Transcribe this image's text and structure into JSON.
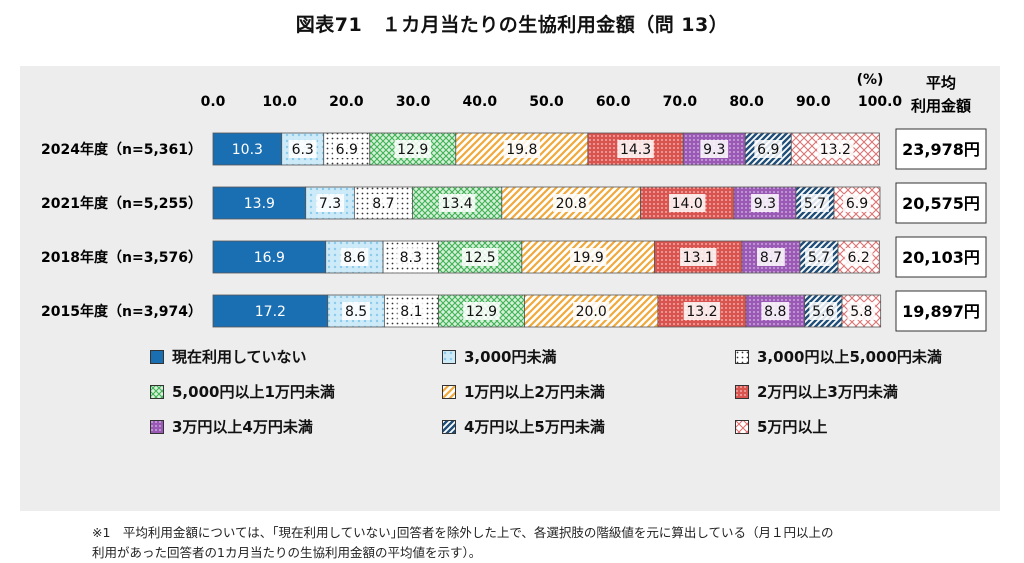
{
  "title": "図表71　１カ月当たりの生協利用金額（問 13）",
  "chart_data": {
    "type": "bar",
    "stacked": true,
    "orientation": "horizontal",
    "unit_label": "(%)",
    "xlim": [
      0,
      100
    ],
    "x_ticks": [
      "0.0",
      "10.0",
      "20.0",
      "30.0",
      "40.0",
      "50.0",
      "60.0",
      "70.0",
      "80.0",
      "90.0",
      "100.0"
    ],
    "categories": [
      "2024年度（n=5,361）",
      "2021年度（n=5,255）",
      "2018年度（n=3,576）",
      "2015年度（n=3,974）"
    ],
    "series": [
      {
        "name": "現在利用していない",
        "color": "#1a6fb3",
        "pattern": "solid",
        "values": [
          10.3,
          13.9,
          16.9,
          17.2
        ]
      },
      {
        "name": "3,000円未満",
        "color": "#a9daf2",
        "pattern": "light",
        "values": [
          6.3,
          7.3,
          8.6,
          8.5
        ]
      },
      {
        "name": "3,000円以上5,000円未満",
        "color": "#444444",
        "pattern": "dots",
        "values": [
          6.9,
          8.7,
          8.3,
          8.1
        ]
      },
      {
        "name": "5,000円以上1万円未満",
        "color": "#3fb255",
        "pattern": "grid",
        "values": [
          12.9,
          13.4,
          12.5,
          12.9
        ]
      },
      {
        "name": "1万円以上2万円未満",
        "color": "#f2a93b",
        "pattern": "diagonal",
        "values": [
          19.8,
          20.8,
          19.9,
          20.0
        ]
      },
      {
        "name": "2万円以上3万円未満",
        "color": "#d9534f",
        "pattern": "dense-dots",
        "values": [
          14.3,
          14.0,
          13.1,
          13.2
        ]
      },
      {
        "name": "3万円以上4万円未満",
        "color": "#9b59b6",
        "pattern": "purple-dots",
        "values": [
          9.3,
          9.3,
          8.7,
          8.8
        ]
      },
      {
        "name": "4万円以上5万円未満",
        "color": "#1f4e79",
        "pattern": "dark-stripes",
        "values": [
          6.9,
          5.7,
          5.7,
          5.6
        ]
      },
      {
        "name": "5万円以上",
        "color": "#e07070",
        "pattern": "crosshatch",
        "values": [
          13.2,
          6.9,
          6.2,
          5.8
        ]
      }
    ],
    "average": {
      "header_line1": "平均",
      "header_line2": "利用金額",
      "values": [
        "23,978円",
        "20,575円",
        "20,103円",
        "19,897円"
      ]
    }
  },
  "footnote": {
    "line1": "※1　平均利用金額については、｢現在利用していない｣回答者を除外した上で、各選択肢の階級値を元に算出している（月１円以上の",
    "line2": "利用があった回答者の1カ月当たりの生協利用金額の平均値を示す）。"
  }
}
